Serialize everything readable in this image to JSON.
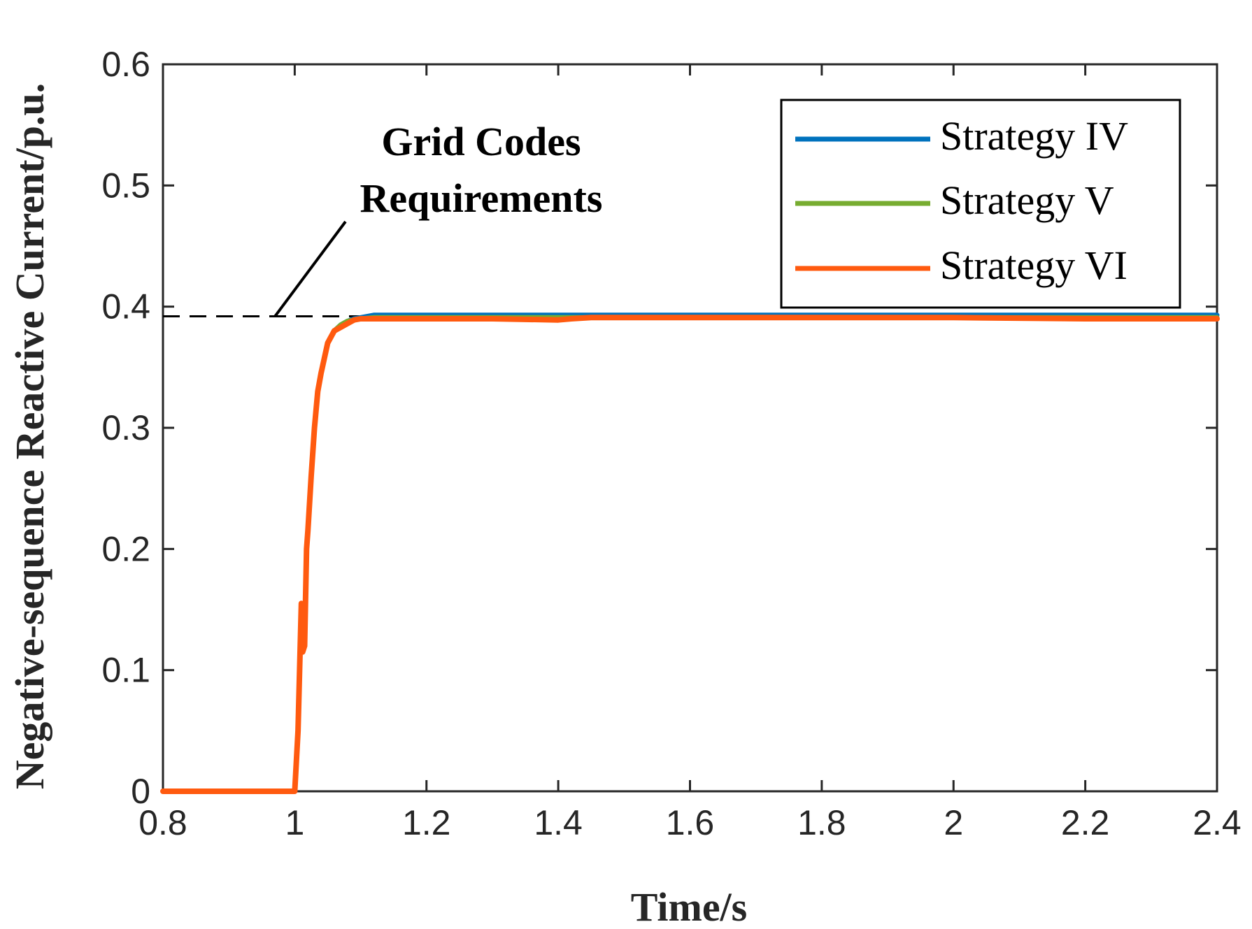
{
  "chart_data": {
    "type": "line",
    "xlabel": "Time/s",
    "ylabel": "Negative-sequence Reactive Current/p.u.",
    "xlim": [
      0.8,
      2.4
    ],
    "ylim": [
      0,
      0.6
    ],
    "xticks": [
      0.8,
      1,
      1.2,
      1.4,
      1.6,
      1.8,
      2,
      2.2,
      2.4
    ],
    "xtick_labels": [
      "0.8",
      "1",
      "1.2",
      "1.4",
      "1.6",
      "1.8",
      "2",
      "2.2",
      "2.4"
    ],
    "yticks": [
      0,
      0.1,
      0.2,
      0.3,
      0.4,
      0.5,
      0.6
    ],
    "ytick_labels": [
      "0",
      "0.1",
      "0.2",
      "0.3",
      "0.4",
      "0.5",
      "0.6"
    ],
    "grid": false,
    "legend_position": "top-right",
    "reference_line": {
      "y": 0.392,
      "style": "dashed",
      "color": "#000000"
    },
    "annotation": {
      "lines": [
        "Grid Codes",
        "Requirements"
      ],
      "arrow_target": {
        "x": 0.97,
        "y": 0.392
      }
    },
    "series": [
      {
        "name": "Strategy IV",
        "color": "#0072BD",
        "x": [
          0.8,
          1.0,
          1.005,
          1.01,
          1.012,
          1.015,
          1.018,
          1.02,
          1.025,
          1.03,
          1.035,
          1.04,
          1.05,
          1.06,
          1.07,
          1.08,
          1.09,
          1.1,
          1.12,
          1.15,
          1.2,
          1.3,
          1.4,
          1.6,
          1.8,
          2.0,
          2.2,
          2.4
        ],
        "y": [
          0,
          0,
          0.05,
          0.155,
          0.115,
          0.12,
          0.2,
          0.215,
          0.26,
          0.3,
          0.33,
          0.345,
          0.37,
          0.38,
          0.385,
          0.388,
          0.39,
          0.391,
          0.393,
          0.393,
          0.393,
          0.393,
          0.393,
          0.393,
          0.393,
          0.393,
          0.393,
          0.393
        ]
      },
      {
        "name": "Strategy V",
        "color": "#77AC30",
        "x": [
          0.8,
          1.0,
          1.005,
          1.01,
          1.012,
          1.015,
          1.018,
          1.02,
          1.025,
          1.03,
          1.035,
          1.04,
          1.05,
          1.06,
          1.07,
          1.08,
          1.09,
          1.1,
          1.12,
          1.15,
          1.2,
          1.3,
          1.4,
          1.6,
          1.8,
          2.0,
          2.2,
          2.4
        ],
        "y": [
          0,
          0,
          0.05,
          0.155,
          0.115,
          0.12,
          0.2,
          0.215,
          0.26,
          0.3,
          0.33,
          0.345,
          0.37,
          0.38,
          0.385,
          0.388,
          0.389,
          0.39,
          0.391,
          0.391,
          0.391,
          0.391,
          0.391,
          0.391,
          0.391,
          0.391,
          0.391,
          0.391
        ]
      },
      {
        "name": "Strategy VI",
        "color": "#FF5A0F",
        "x": [
          0.8,
          1.0,
          1.005,
          1.01,
          1.012,
          1.015,
          1.018,
          1.02,
          1.025,
          1.03,
          1.035,
          1.04,
          1.05,
          1.06,
          1.07,
          1.08,
          1.09,
          1.1,
          1.12,
          1.15,
          1.2,
          1.3,
          1.4,
          1.42,
          1.45,
          1.6,
          1.8,
          2.0,
          2.2,
          2.4
        ],
        "y": [
          0,
          0,
          0.05,
          0.155,
          0.115,
          0.12,
          0.2,
          0.215,
          0.26,
          0.3,
          0.33,
          0.345,
          0.37,
          0.38,
          0.383,
          0.386,
          0.389,
          0.39,
          0.39,
          0.39,
          0.39,
          0.39,
          0.389,
          0.39,
          0.391,
          0.391,
          0.391,
          0.391,
          0.39,
          0.39
        ]
      }
    ]
  }
}
